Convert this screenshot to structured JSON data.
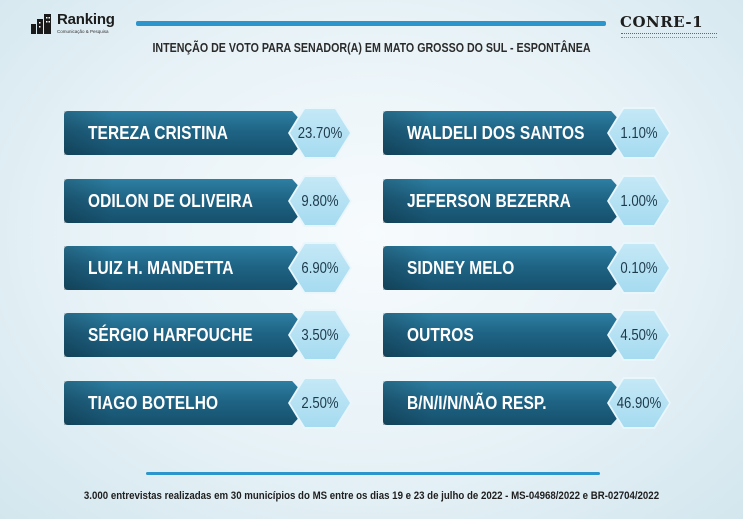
{
  "header": {
    "brand_left": "Ranking",
    "brand_left_sub": "Comunicação & Pesquisa",
    "brand_right": "CONRE-1",
    "title": "INTENÇÃO DE VOTO PARA SENADOR(A) EM MATO GROSSO DO SUL - ESPONTÂNEA"
  },
  "chart_data": {
    "type": "table",
    "title": "INTENÇÃO DE VOTO PARA SENADOR(A) EM MATO GROSSO DO SUL - ESPONTÂNEA",
    "categories": [
      "TEREZA CRISTINA",
      "ODILON DE OLIVEIRA",
      "LUIZ H. MANDETTA",
      "SÉRGIO HARFOUCHE",
      "TIAGO BOTELHO",
      "WALDELI DOS SANTOS",
      "JEFERSON BEZERRA",
      "SIDNEY MELO",
      "OUTROS",
      "B/N/I/N/NÃO RESP."
    ],
    "values": [
      23.7,
      9.8,
      6.9,
      3.5,
      2.5,
      1.1,
      1.0,
      0.1,
      4.5,
      46.9
    ],
    "value_labels": [
      "23.70%",
      "9.80%",
      "6.90%",
      "3.50%",
      "2.50%",
      "1.10%",
      "1.00%",
      "0.10%",
      "4.50%",
      "46.90%"
    ]
  },
  "footer": "3.000 entrevistas realizadas em 30 municípios do MS entre os dias 19 e 23 de julho de 2022 - MS-04968/2022 e BR-02704/2022",
  "colors": {
    "bar": "#1f6485",
    "hexagon": "#a6dbf0",
    "accent_line": "#2c95cc"
  }
}
